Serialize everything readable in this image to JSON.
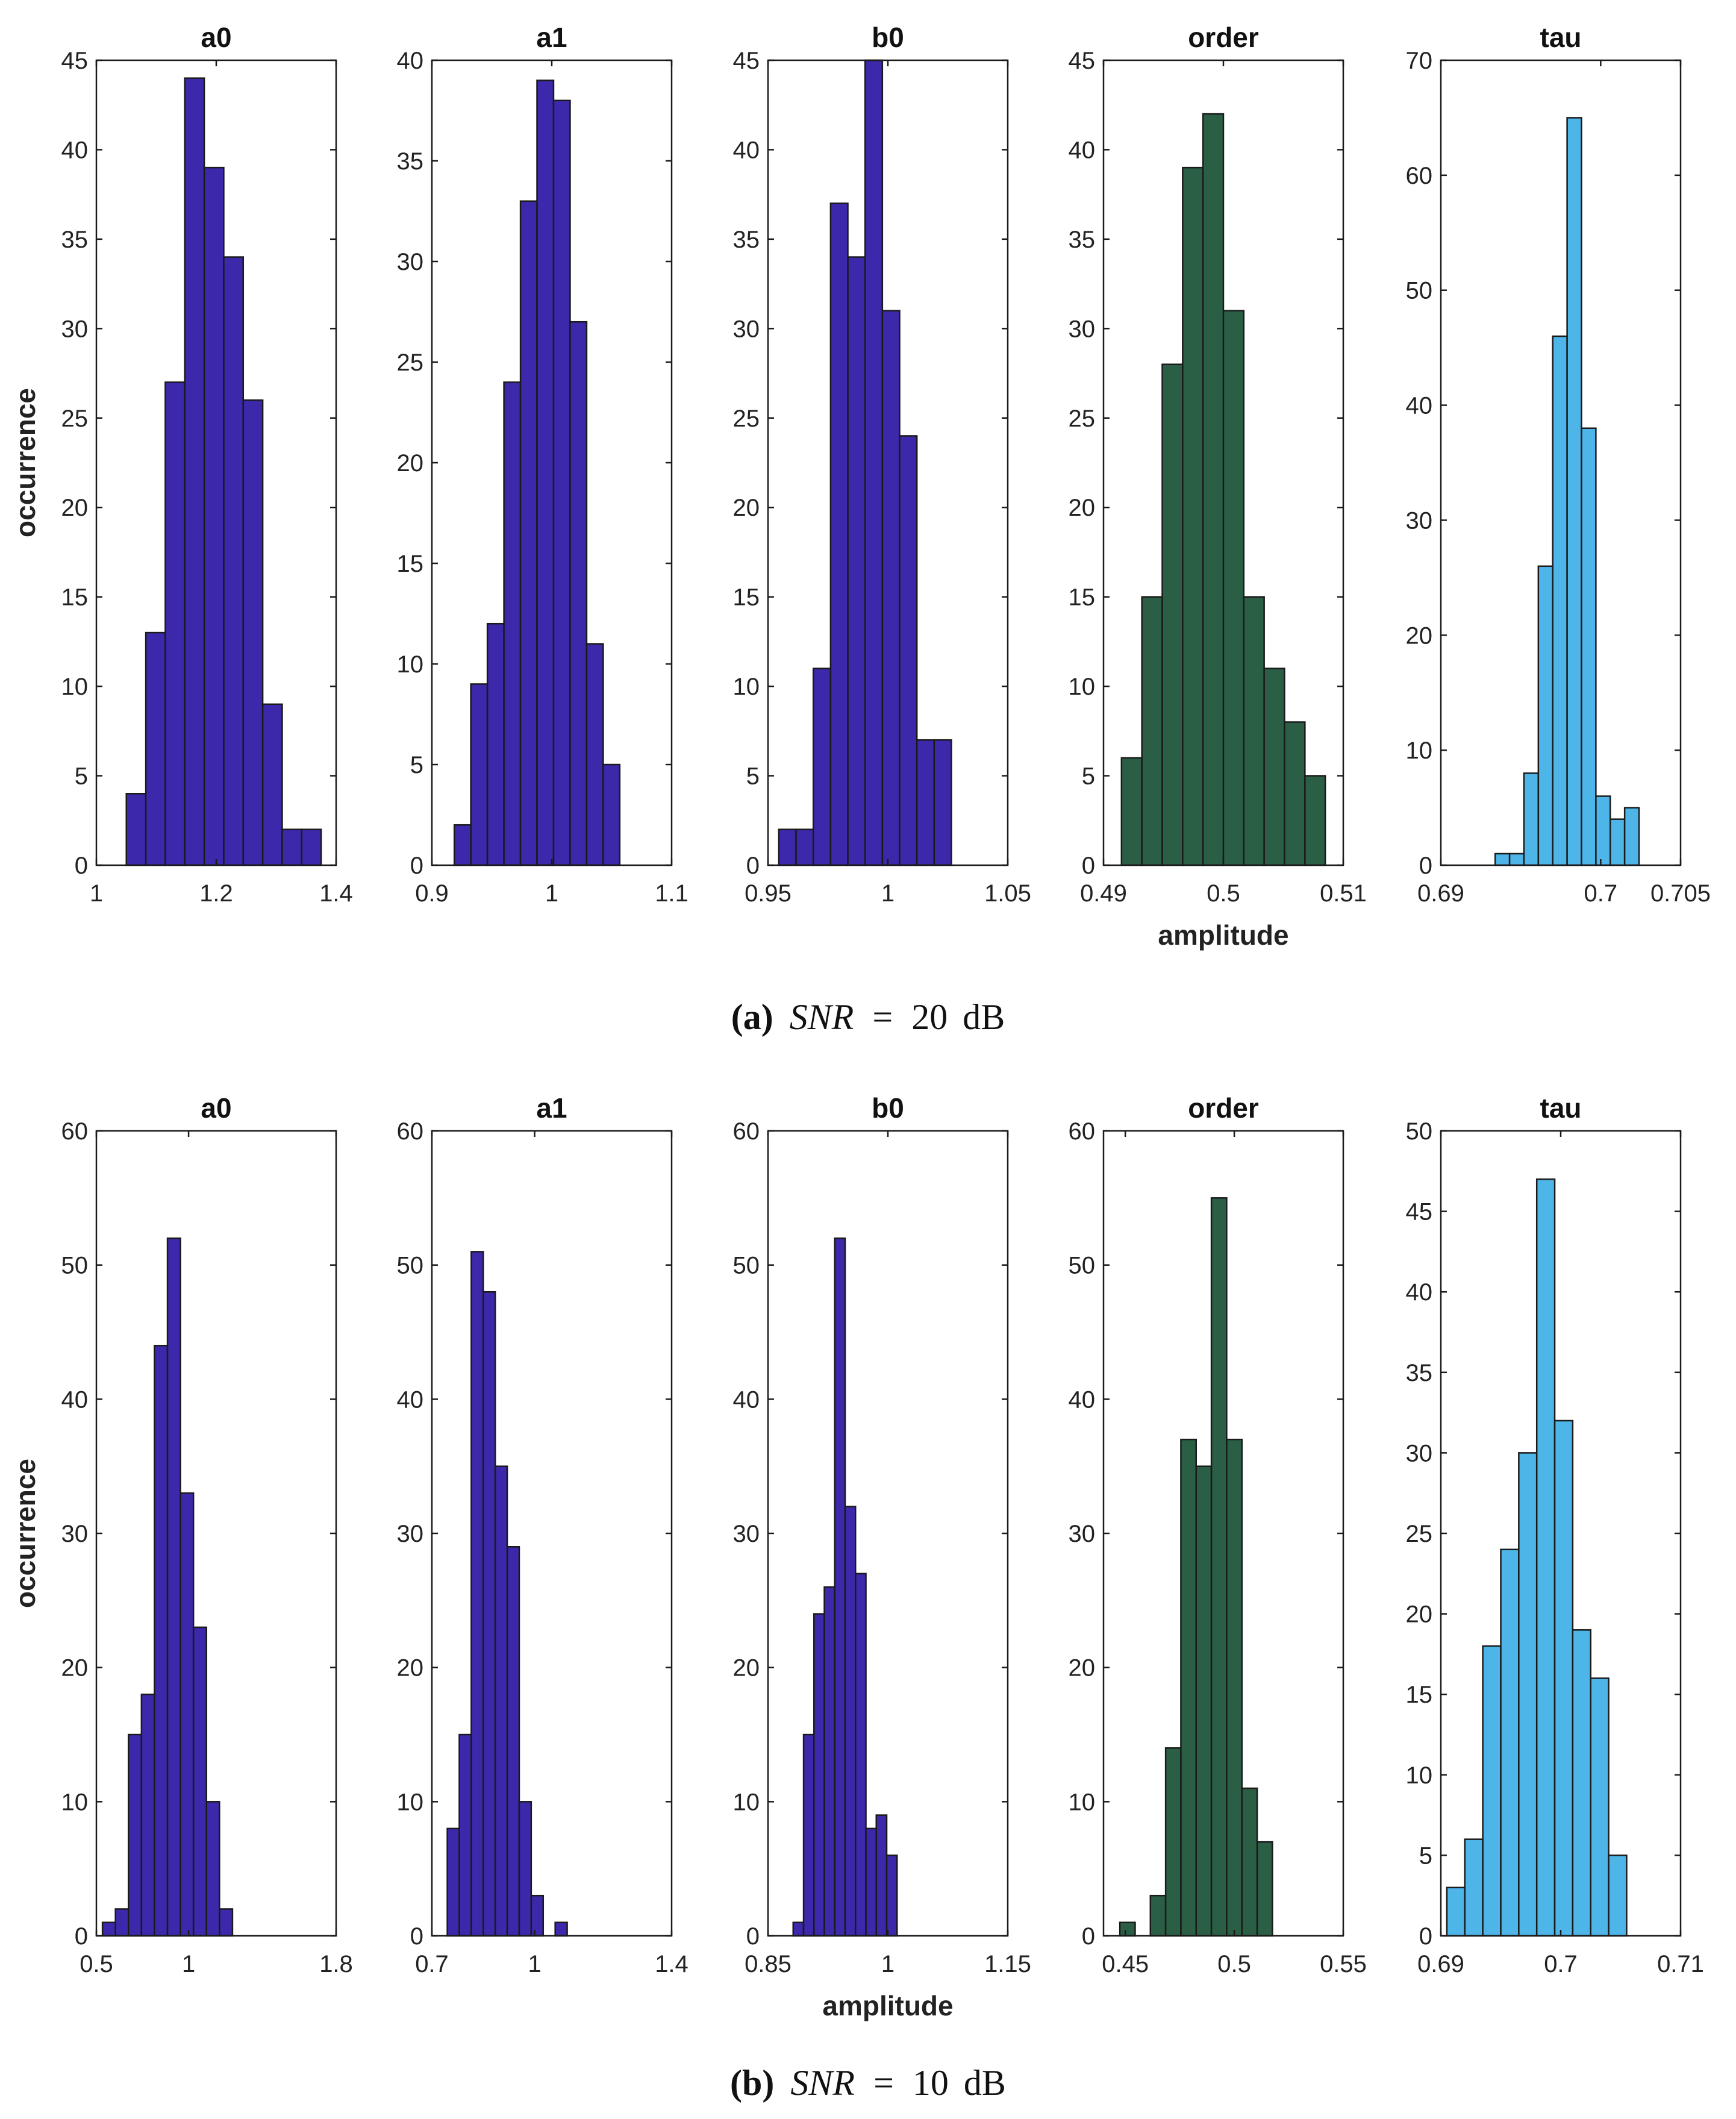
{
  "chart_data": [
    {
      "row": 0,
      "col": 0,
      "type": "bar",
      "title": "a0",
      "ylabel": "occurrence",
      "xlabel": "",
      "color": "#3c28aa",
      "xlim": [
        1,
        1.4
      ],
      "xticks": [
        1,
        1.2,
        1.4
      ],
      "xtick_labels": [
        "1",
        "1.2",
        "1.4"
      ],
      "ylim": [
        0,
        45
      ],
      "yticks": [
        0,
        5,
        10,
        15,
        20,
        25,
        30,
        35,
        40,
        45
      ],
      "bin_edges": [
        1.05,
        1.0825,
        1.115,
        1.1475,
        1.18,
        1.2125,
        1.245,
        1.2775,
        1.31,
        1.3425,
        1.375
      ],
      "counts": [
        4,
        13,
        27,
        44,
        39,
        34,
        26,
        9,
        2,
        2
      ]
    },
    {
      "row": 0,
      "col": 1,
      "type": "bar",
      "title": "a1",
      "ylabel": "",
      "xlabel": "",
      "color": "#3c28aa",
      "xlim": [
        0.9,
        1.1
      ],
      "xticks": [
        0.9,
        1,
        1.1
      ],
      "xtick_labels": [
        "0.9",
        "1",
        "1.1"
      ],
      "ylim": [
        0,
        40
      ],
      "yticks": [
        0,
        5,
        10,
        15,
        20,
        25,
        30,
        35,
        40
      ],
      "bin_edges": [
        0.9187,
        0.9325,
        0.9463,
        0.9601,
        0.9739,
        0.9877,
        1.0015,
        1.0153,
        1.0291,
        1.0429,
        1.0567,
        1.0705
      ],
      "counts": [
        2,
        9,
        12,
        24,
        33,
        39,
        38,
        27,
        11,
        5,
        0
      ]
    },
    {
      "row": 0,
      "col": 2,
      "type": "bar",
      "title": "b0",
      "ylabel": "",
      "xlabel": "",
      "color": "#3c28aa",
      "xlim": [
        0.95,
        1.05
      ],
      "xticks": [
        0.95,
        1,
        1.05
      ],
      "xtick_labels": [
        "0.95",
        "1",
        "1.05"
      ],
      "ylim": [
        0,
        45
      ],
      "yticks": [
        0,
        5,
        10,
        15,
        20,
        25,
        30,
        35,
        40,
        45
      ],
      "bin_edges": [
        0.9545,
        0.9617,
        0.9689,
        0.9761,
        0.9833,
        0.9905,
        0.9977,
        1.0049,
        1.0121,
        1.0193,
        1.0265,
        1.0337
      ],
      "counts": [
        2,
        2,
        11,
        37,
        34,
        45,
        31,
        24,
        7,
        7,
        0
      ]
    },
    {
      "row": 0,
      "col": 3,
      "type": "bar",
      "title": "order",
      "ylabel": "",
      "xlabel": "amplitude",
      "color": "#2a5f45",
      "xlim": [
        0.49,
        0.51
      ],
      "xticks": [
        0.49,
        0.5,
        0.51
      ],
      "xtick_labels": [
        "0.49",
        "0.5",
        "0.51"
      ],
      "ylim": [
        0,
        45
      ],
      "yticks": [
        0,
        5,
        10,
        15,
        20,
        25,
        30,
        35,
        40,
        45
      ],
      "bin_edges": [
        0.4915,
        0.4932,
        0.4949,
        0.4966,
        0.4983,
        0.5,
        0.5017,
        0.5034,
        0.5051,
        0.5068,
        0.5085,
        0.5102
      ],
      "counts": [
        6,
        15,
        28,
        39,
        42,
        31,
        15,
        11,
        8,
        5,
        0
      ]
    },
    {
      "row": 0,
      "col": 4,
      "type": "bar",
      "title": "tau",
      "ylabel": "",
      "xlabel": "",
      "color": "#4eb5e8",
      "xlim": [
        0.69,
        0.705
      ],
      "xticks": [
        0.69,
        0.7,
        0.705
      ],
      "xtick_labels": [
        "0.69",
        "0.7",
        "0.705"
      ],
      "ylim": [
        0,
        70
      ],
      "yticks": [
        0,
        10,
        20,
        30,
        40,
        50,
        60,
        70
      ],
      "bin_edges": [
        0.6925,
        0.6934,
        0.6943,
        0.6952,
        0.6961,
        0.697,
        0.6979,
        0.6988,
        0.6997,
        0.7006,
        0.7015,
        0.7024,
        0.7033
      ],
      "counts": [
        0,
        1,
        1,
        8,
        26,
        46,
        65,
        38,
        6,
        4,
        5,
        0
      ]
    },
    {
      "row": 1,
      "col": 0,
      "type": "bar",
      "title": "a0",
      "ylabel": "occurrence",
      "xlabel": "",
      "color": "#3c28aa",
      "xlim": [
        0.5,
        1.8
      ],
      "xticks": [
        0.5,
        1,
        1.8
      ],
      "xtick_labels": [
        "0.5",
        "1",
        "1.8"
      ],
      "ylim": [
        0,
        60
      ],
      "yticks": [
        0,
        10,
        20,
        30,
        40,
        50,
        60
      ],
      "bin_edges": [
        0.533,
        0.6035,
        0.674,
        0.7445,
        0.815,
        0.8855,
        0.956,
        1.0265,
        1.097,
        1.1675,
        1.238,
        1.3085
      ],
      "counts": [
        1,
        2,
        15,
        18,
        44,
        52,
        33,
        23,
        10,
        2,
        0
      ]
    },
    {
      "row": 1,
      "col": 1,
      "type": "bar",
      "title": "a1",
      "ylabel": "",
      "xlabel": "",
      "color": "#3c28aa",
      "xlim": [
        0.7,
        1.4
      ],
      "xticks": [
        0.7,
        1,
        1.4
      ],
      "xtick_labels": [
        "0.7",
        "1",
        "1.4"
      ],
      "ylim": [
        0,
        60
      ],
      "yticks": [
        0,
        10,
        20,
        30,
        40,
        50,
        60
      ],
      "bin_edges": [
        0.745,
        0.78,
        0.815,
        0.85,
        0.885,
        0.92,
        0.955,
        0.99,
        1.025,
        1.06,
        1.095,
        1.13,
        1.165
      ],
      "counts": [
        8,
        15,
        51,
        48,
        35,
        29,
        10,
        3,
        0,
        1,
        0,
        0
      ]
    },
    {
      "row": 1,
      "col": 2,
      "type": "bar",
      "title": "b0",
      "ylabel": "",
      "xlabel": "amplitude",
      "color": "#3c28aa",
      "xlim": [
        0.85,
        1.15
      ],
      "xticks": [
        0.85,
        1,
        1.15
      ],
      "xtick_labels": [
        "0.85",
        "1",
        "1.15"
      ],
      "ylim": [
        0,
        60
      ],
      "yticks": [
        0,
        10,
        20,
        30,
        40,
        50,
        60
      ],
      "bin_edges": [
        0.8815,
        0.8945,
        0.9075,
        0.9205,
        0.9335,
        0.9465,
        0.9595,
        0.9725,
        0.9855,
        0.9985,
        1.0115,
        1.0245,
        1.0375,
        1.0505
      ],
      "counts": [
        1,
        15,
        24,
        26,
        52,
        32,
        27,
        8,
        9,
        6,
        0,
        0,
        0
      ]
    },
    {
      "row": 1,
      "col": 3,
      "type": "bar",
      "title": "order",
      "ylabel": "",
      "xlabel": "",
      "color": "#2a5f45",
      "xlim": [
        0.44,
        0.55
      ],
      "xticks": [
        0.45,
        0.5,
        0.55
      ],
      "xtick_labels": [
        "0.45",
        "0.5",
        "0.55"
      ],
      "ylim": [
        0,
        60
      ],
      "yticks": [
        0,
        10,
        20,
        30,
        40,
        50,
        60
      ],
      "bin_edges": [
        0.4475,
        0.4545,
        0.4615,
        0.4685,
        0.4755,
        0.4825,
        0.4895,
        0.4965,
        0.5035,
        0.5105,
        0.5175,
        0.5245,
        0.5315
      ],
      "counts": [
        1,
        0,
        3,
        14,
        37,
        35,
        55,
        37,
        11,
        7,
        0,
        0
      ]
    },
    {
      "row": 1,
      "col": 4,
      "type": "bar",
      "title": "tau",
      "ylabel": "",
      "xlabel": "",
      "color": "#4eb5e8",
      "xlim": [
        0.69,
        0.71
      ],
      "xticks": [
        0.69,
        0.7,
        0.71
      ],
      "xtick_labels": [
        "0.69",
        "0.7",
        "0.71"
      ],
      "ylim": [
        0,
        50
      ],
      "yticks": [
        0,
        5,
        10,
        15,
        20,
        25,
        30,
        35,
        40,
        45,
        50
      ],
      "bin_edges": [
        0.6905,
        0.692,
        0.6935,
        0.695,
        0.6965,
        0.698,
        0.6995,
        0.701,
        0.7025,
        0.704,
        0.7055,
        0.707,
        0.7085
      ],
      "counts": [
        3,
        6,
        18,
        24,
        30,
        47,
        32,
        19,
        16,
        5,
        0,
        0
      ]
    }
  ],
  "captions": [
    {
      "letter": "(a)",
      "snr_label": "SNR",
      "equals": "=",
      "value": "20",
      "unit": "dB"
    },
    {
      "letter": "(b)",
      "snr_label": "SNR",
      "equals": "=",
      "value": "10",
      "unit": "dB"
    }
  ]
}
